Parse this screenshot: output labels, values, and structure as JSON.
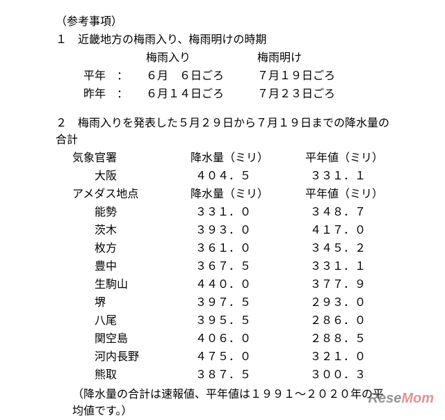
{
  "title": "（参考事項）",
  "section1": {
    "heading": "１　近畿地方の梅雨入り、梅雨明けの時期",
    "col1_label": "梅雨入り",
    "col2_label": "梅雨明け",
    "rows": [
      {
        "label": "平年　：",
        "tsuyu_iri": "６月　６日ごろ",
        "tsuyu_ake": "７月１９日ごろ"
      },
      {
        "label": "昨年　：",
        "tsuyu_iri": "６月１４日ごろ",
        "tsuyu_ake": "７月２３日ごろ"
      }
    ]
  },
  "section2": {
    "heading": "２　梅雨入りを発表した５月２９日から７月１９日までの降水量の合計",
    "office_label": "気象官署",
    "rain_label": "降水量（ミリ）",
    "normal_label": "平年値（ミリ）",
    "office_rows": [
      {
        "name": "大阪",
        "rain": "４０４．５",
        "normal": "３３１．１"
      }
    ],
    "amedas_label": "アメダス地点",
    "amedas_rain_label": "降水量（ミリ）",
    "amedas_normal_label": "平年値（ミリ）",
    "amedas_rows": [
      {
        "name": "能勢",
        "rain": "３３１．０",
        "normal": "３４８．７"
      },
      {
        "name": "茨木",
        "rain": "３９３．０",
        "normal": "４１７．０"
      },
      {
        "name": "枚方",
        "rain": "３６１．０",
        "normal": "３４５．２"
      },
      {
        "name": "豊中",
        "rain": "３６７．５",
        "normal": "３３１．１"
      },
      {
        "name": "生駒山",
        "rain": "４４０．０",
        "normal": "３７７．９"
      },
      {
        "name": "堺",
        "rain": "３９７．５",
        "normal": "２９３．０"
      },
      {
        "name": "八尾",
        "rain": "３９５．５",
        "normal": "２８６．０"
      },
      {
        "name": "関空島",
        "rain": "４０６．０",
        "normal": "２８８．５"
      },
      {
        "name": "河内長野",
        "rain": "４７５．０",
        "normal": "３２１．０"
      },
      {
        "name": "熊取",
        "rain": "３８７．５",
        "normal": "３００．３"
      }
    ],
    "note": "（降水量の合計は速報値、平年値は１９９１～２０２０年の平均値です。）"
  },
  "watermark": {
    "rese": "Rese",
    "mom": "Mom"
  }
}
